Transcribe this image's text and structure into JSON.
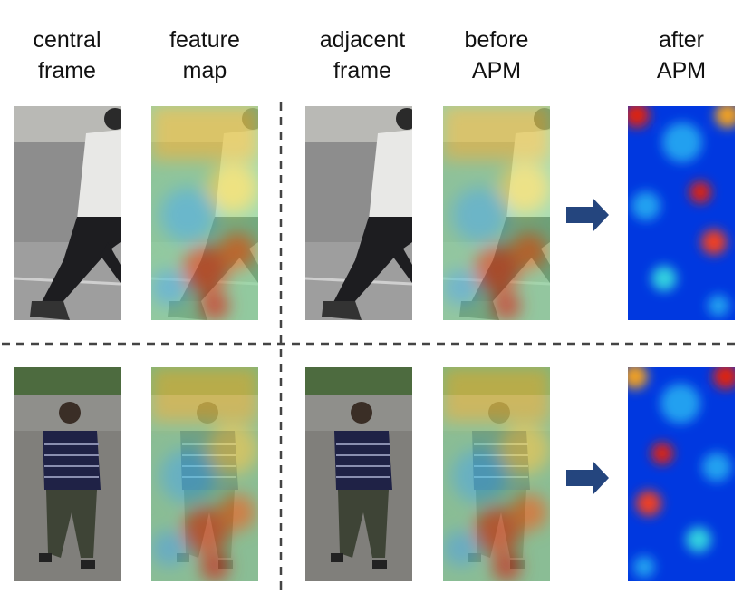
{
  "headers": [
    {
      "lines": [
        "central",
        "frame"
      ]
    },
    {
      "lines": [
        "feature",
        "map"
      ]
    },
    {
      "lines": [
        "adjacent",
        "frame"
      ]
    },
    {
      "lines": [
        "before",
        "APM"
      ]
    },
    {
      "lines": [
        "after",
        "APM"
      ]
    }
  ]
}
